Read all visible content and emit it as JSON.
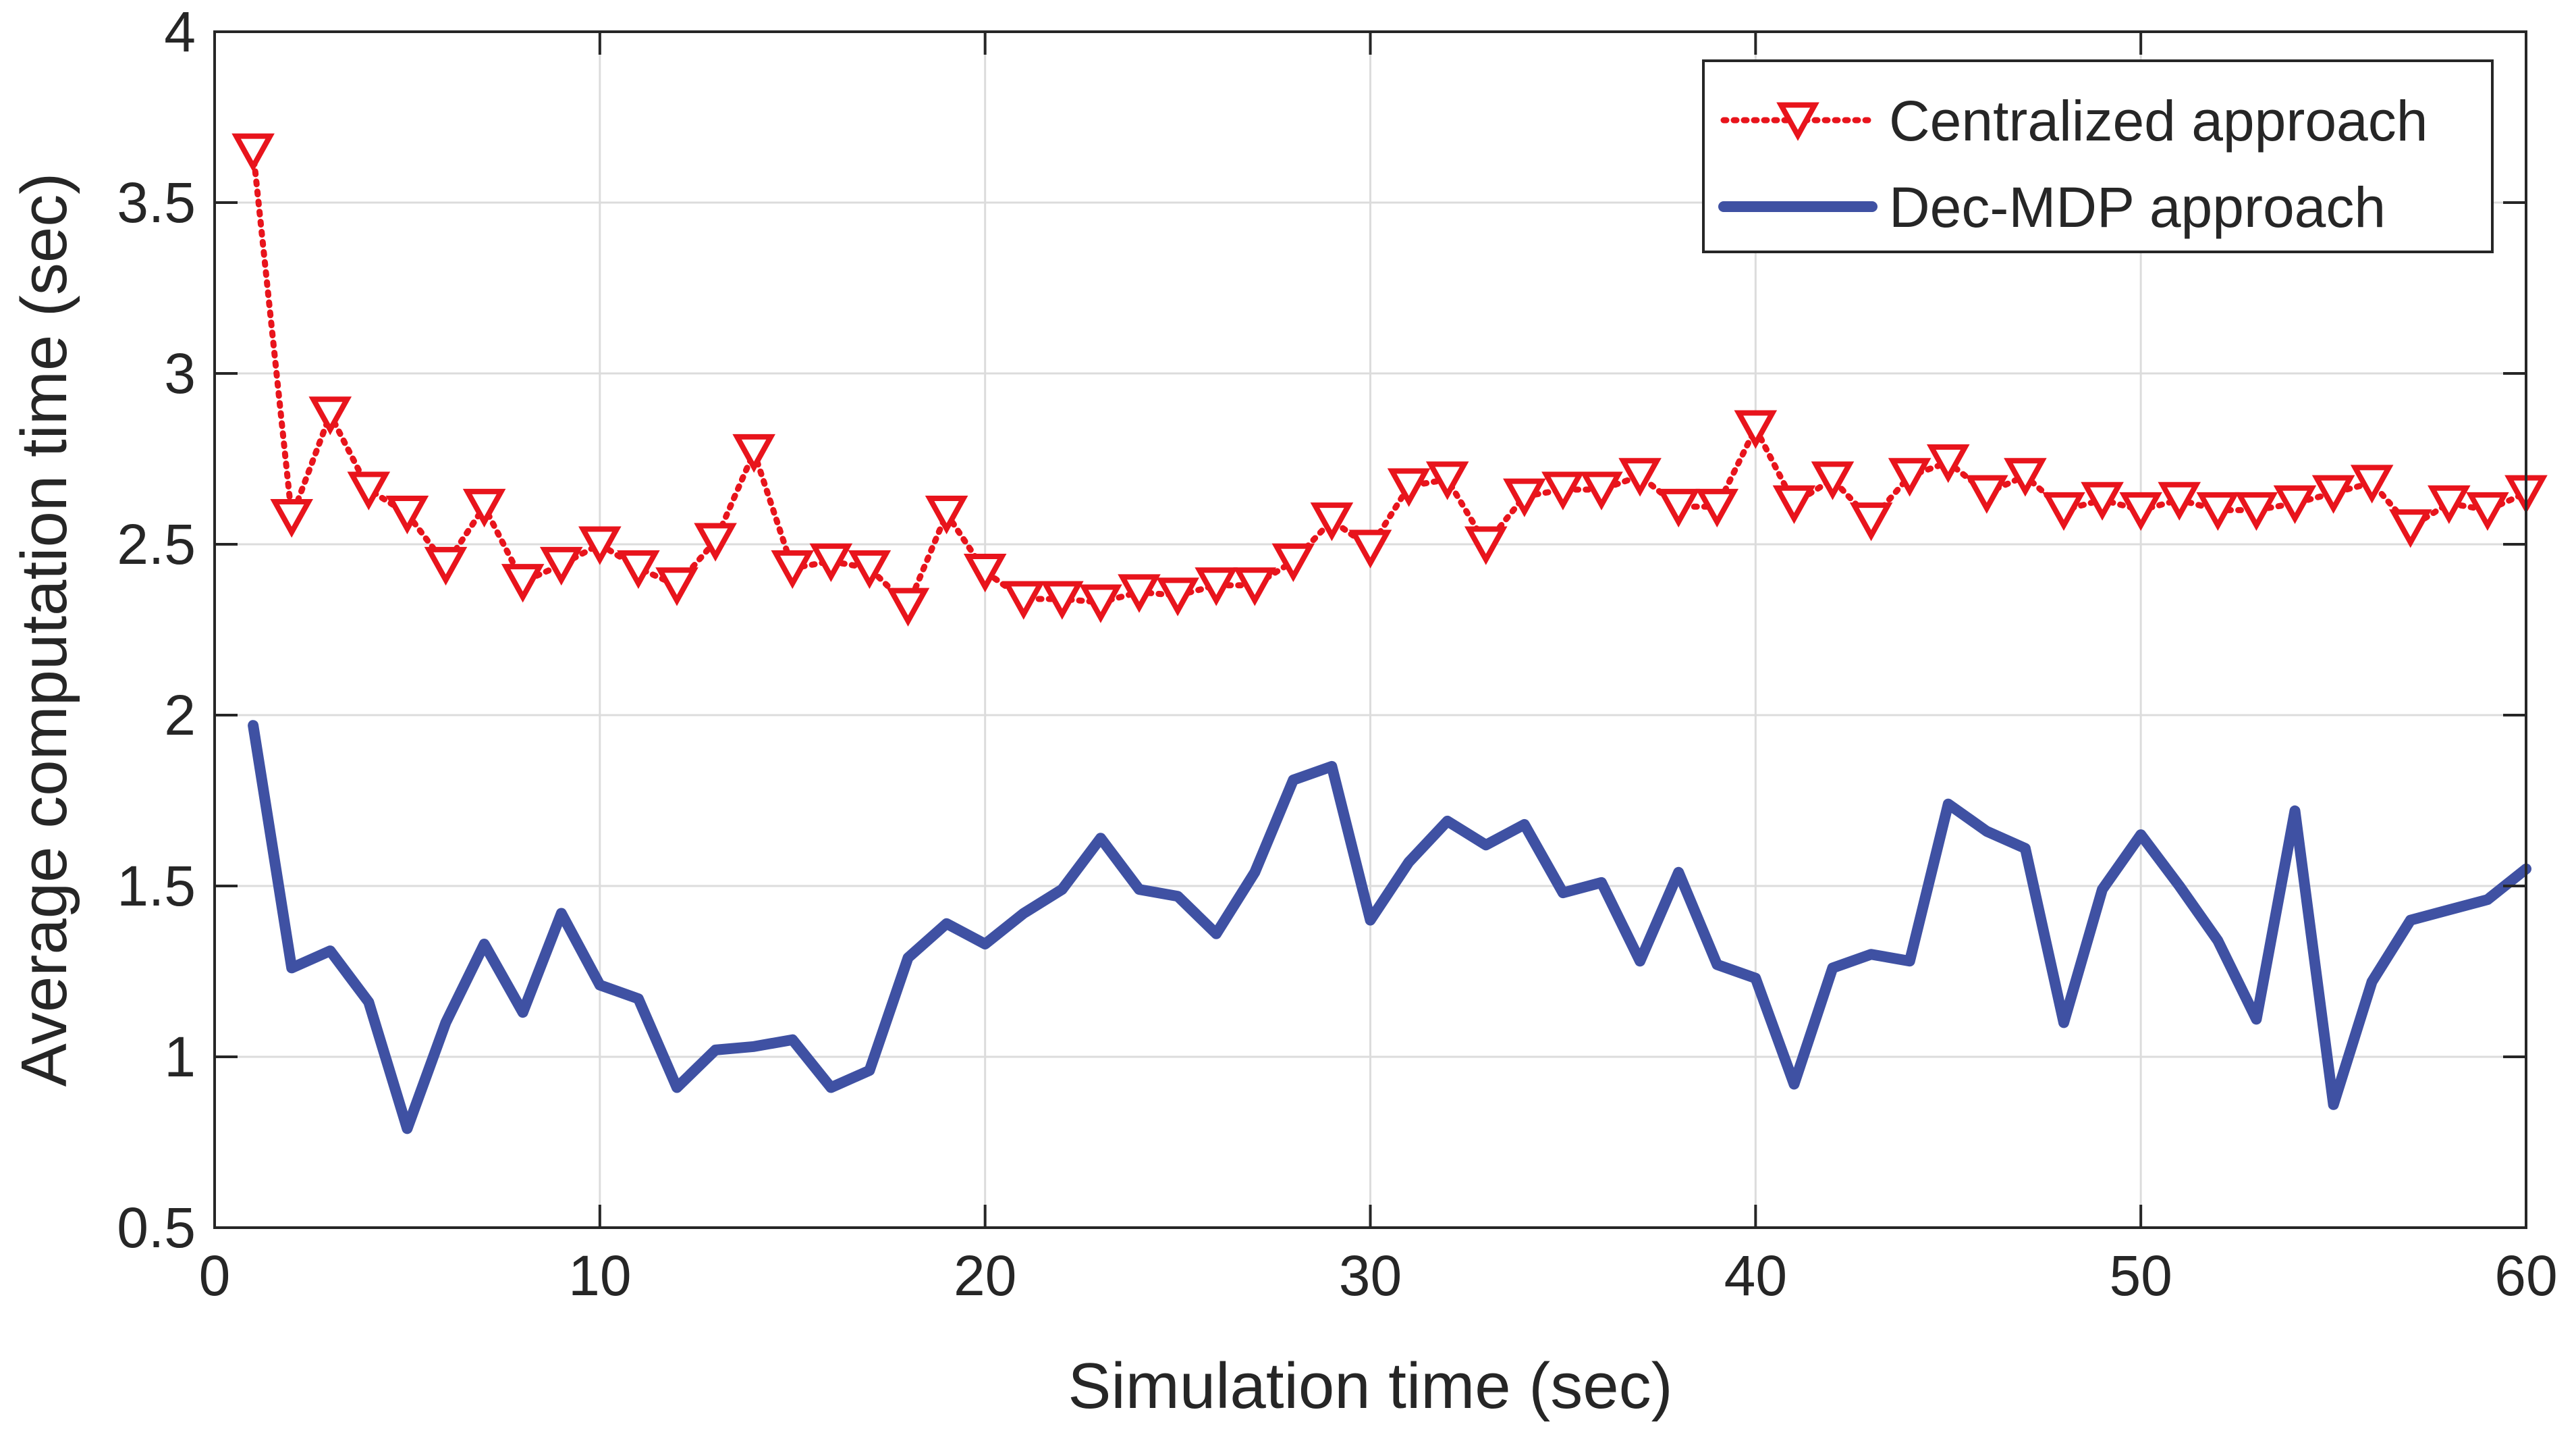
{
  "chart_data": {
    "type": "line",
    "title": "",
    "xlabel": "Simulation time (sec)",
    "ylabel": "Average computation time (sec)",
    "xlim": [
      0,
      60
    ],
    "ylim": [
      0.5,
      4
    ],
    "xticks": [
      0,
      10,
      20,
      30,
      40,
      50,
      60
    ],
    "yticks": [
      0.5,
      1,
      1.5,
      2,
      2.5,
      3,
      3.5,
      4
    ],
    "xtick_labels": [
      "0",
      "10",
      "20",
      "30",
      "40",
      "50",
      "60"
    ],
    "ytick_labels": [
      "0.5",
      "1",
      "1.5",
      "2",
      "2.5",
      "3",
      "3.5",
      "4"
    ],
    "grid": true,
    "legend_position": "top-right",
    "x": [
      1,
      2,
      3,
      4,
      5,
      6,
      7,
      8,
      9,
      10,
      11,
      12,
      13,
      14,
      15,
      16,
      17,
      18,
      19,
      20,
      21,
      22,
      23,
      24,
      25,
      26,
      27,
      28,
      29,
      30,
      31,
      32,
      33,
      34,
      35,
      36,
      37,
      38,
      39,
      40,
      41,
      42,
      43,
      44,
      45,
      46,
      47,
      48,
      49,
      50,
      51,
      52,
      53,
      54,
      55,
      56,
      57,
      58,
      59,
      60
    ],
    "series": [
      {
        "name": "Centralized approach",
        "color": "#e8141c",
        "line_style": "dotted",
        "marker": "down-triangle",
        "values": [
          3.65,
          2.58,
          2.88,
          2.66,
          2.59,
          2.44,
          2.61,
          2.39,
          2.44,
          2.5,
          2.43,
          2.38,
          2.51,
          2.77,
          2.43,
          2.45,
          2.43,
          2.32,
          2.59,
          2.42,
          2.34,
          2.34,
          2.33,
          2.36,
          2.35,
          2.38,
          2.38,
          2.45,
          2.57,
          2.49,
          2.67,
          2.69,
          2.5,
          2.64,
          2.66,
          2.66,
          2.7,
          2.61,
          2.61,
          2.84,
          2.62,
          2.69,
          2.57,
          2.7,
          2.74,
          2.65,
          2.7,
          2.6,
          2.63,
          2.6,
          2.63,
          2.6,
          2.6,
          2.62,
          2.65,
          2.68,
          2.55,
          2.62,
          2.6,
          2.65
        ]
      },
      {
        "name": "Dec-MDP approach",
        "color": "#3f51a3",
        "line_style": "solid",
        "marker": "none",
        "values": [
          1.97,
          1.26,
          1.31,
          1.16,
          0.79,
          1.1,
          1.33,
          1.13,
          1.42,
          1.21,
          1.17,
          0.91,
          1.02,
          1.03,
          1.05,
          0.91,
          0.96,
          1.29,
          1.39,
          1.33,
          1.42,
          1.49,
          1.64,
          1.49,
          1.47,
          1.36,
          1.54,
          1.81,
          1.85,
          1.4,
          1.57,
          1.69,
          1.62,
          1.68,
          1.48,
          1.51,
          1.28,
          1.54,
          1.27,
          1.23,
          0.92,
          1.26,
          1.3,
          1.28,
          1.74,
          1.66,
          1.61,
          1.1,
          1.49,
          1.65,
          1.5,
          1.34,
          1.11,
          1.72,
          0.86,
          1.22,
          1.4,
          1.43,
          1.46,
          1.55
        ]
      }
    ]
  }
}
